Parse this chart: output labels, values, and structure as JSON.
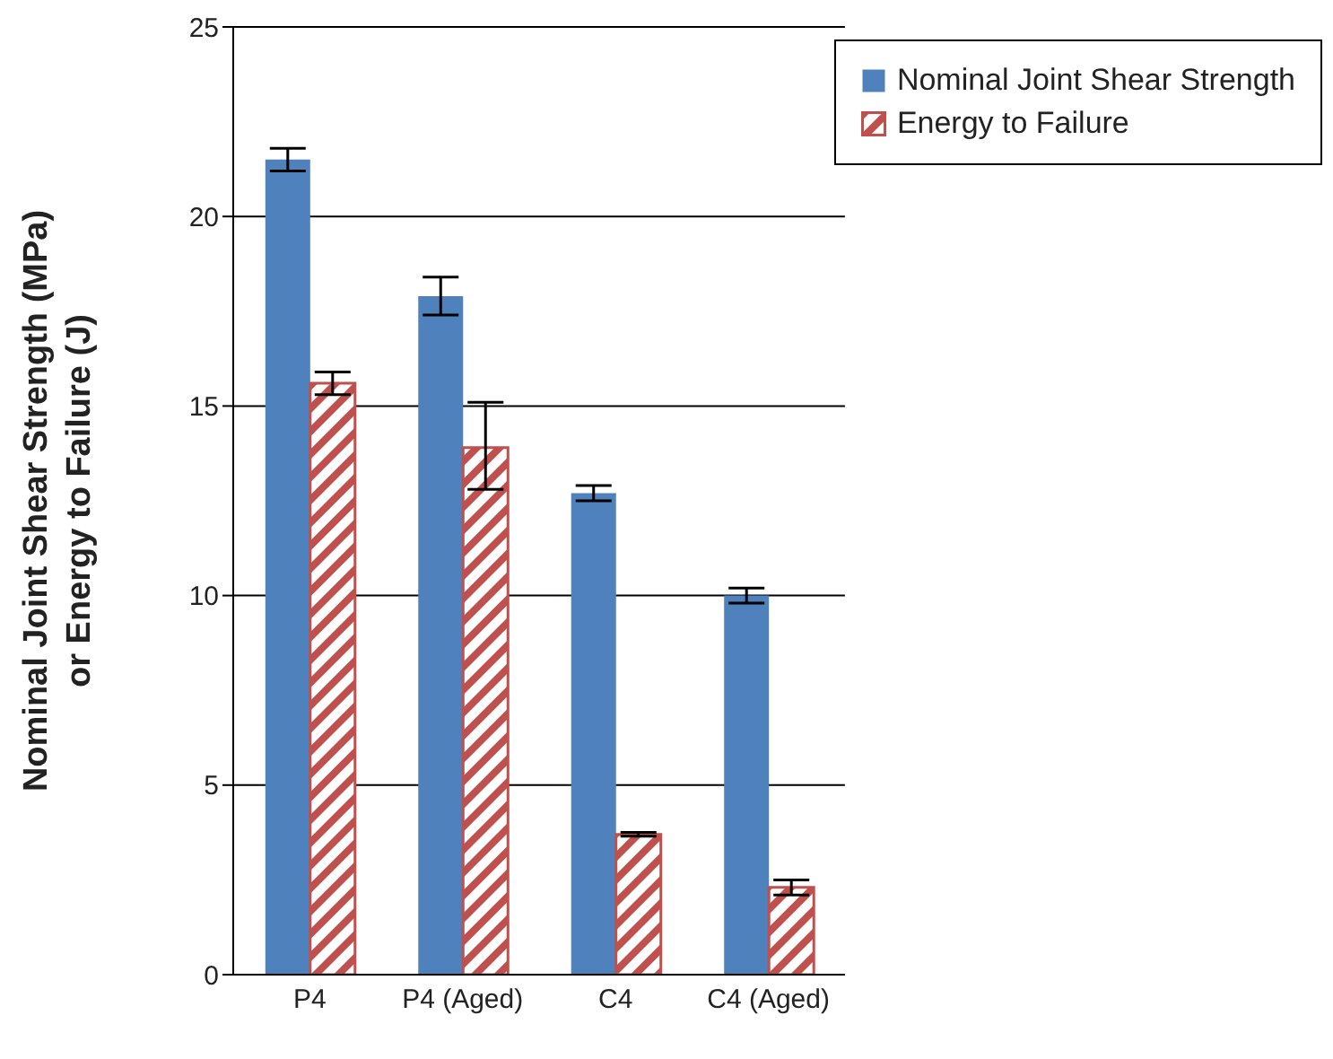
{
  "chart_data": {
    "type": "bar",
    "ylabel": "Nominal Joint Shear Strength (MPa)\nor Energy to Failure (J)",
    "categories": [
      "P4",
      "P4 (Aged)",
      "C4",
      "C4 (Aged)"
    ],
    "series": [
      {
        "name": "Nominal Joint Shear Strength",
        "color": "#4f81bd",
        "values": [
          21.5,
          17.9,
          12.7,
          10.0
        ],
        "errors": [
          0.3,
          0.5,
          0.2,
          0.2
        ]
      },
      {
        "name": "Energy to Failure",
        "color": "#c0504d",
        "values": [
          15.6,
          13.9,
          3.7,
          2.3
        ],
        "errors": [
          0.3,
          [
            12.8,
            15.1
          ],
          0.05,
          0.2
        ]
      }
    ],
    "ylim": [
      0,
      25
    ],
    "yticks": [
      0,
      5,
      10,
      15,
      20,
      25
    ],
    "grid": "y",
    "legend": "top right"
  }
}
